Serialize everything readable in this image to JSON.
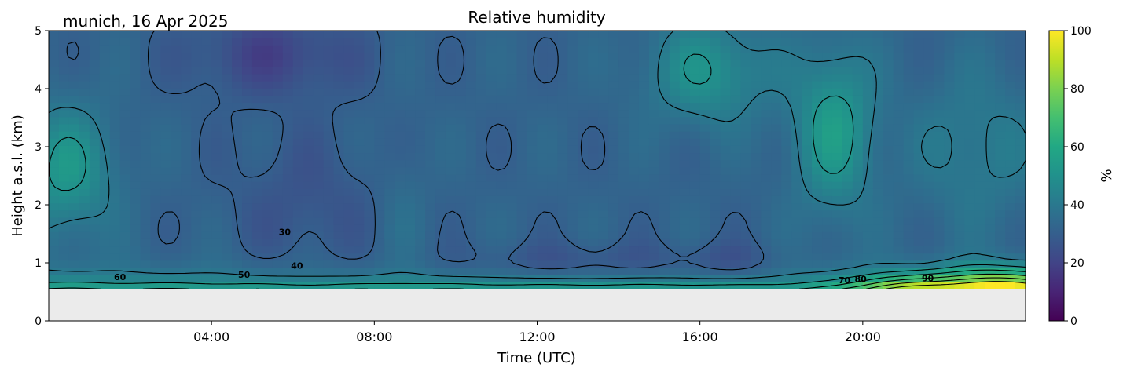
{
  "chart_data": {
    "type": "heatmap",
    "title": "Relative humidity",
    "subtitle": "munich, 16 Apr 2025",
    "xlabel": "Time (UTC)",
    "ylabel": "Height a.s.l. (km)",
    "xlim": [
      0,
      24
    ],
    "ylim": [
      0,
      5
    ],
    "x_ticks": [
      {
        "value": 4,
        "label": "04:00"
      },
      {
        "value": 8,
        "label": "08:00"
      },
      {
        "value": 12,
        "label": "12:00"
      },
      {
        "value": 16,
        "label": "16:00"
      },
      {
        "value": 20,
        "label": "20:00"
      }
    ],
    "y_ticks": [
      {
        "value": 0,
        "label": "0"
      },
      {
        "value": 1,
        "label": "1"
      },
      {
        "value": 2,
        "label": "2"
      },
      {
        "value": 3,
        "label": "3"
      },
      {
        "value": 4,
        "label": "4"
      },
      {
        "value": 5,
        "label": "5"
      }
    ],
    "no_data_below_km": 0.55,
    "colormap": "viridis",
    "colorbar": {
      "label": "%",
      "range": [
        0,
        100
      ],
      "ticks": [
        {
          "value": 0,
          "label": "0"
        },
        {
          "value": 20,
          "label": "20"
        },
        {
          "value": 40,
          "label": "40"
        },
        {
          "value": 60,
          "label": "60"
        },
        {
          "value": 80,
          "label": "80"
        },
        {
          "value": 100,
          "label": "100"
        }
      ]
    },
    "contour_levels": [
      30,
      40,
      50,
      60,
      70,
      80,
      90
    ],
    "contour_labels": [
      {
        "text": "30",
        "x": 5.8,
        "y": 1.48
      },
      {
        "text": "40",
        "x": 6.1,
        "y": 0.9
      },
      {
        "text": "50",
        "x": 4.8,
        "y": 0.74
      },
      {
        "text": "60",
        "x": 1.75,
        "y": 0.7
      },
      {
        "text": "70",
        "x": 19.55,
        "y": 0.65
      },
      {
        "text": "80",
        "x": 19.95,
        "y": 0.67
      },
      {
        "text": "90",
        "x": 21.6,
        "y": 0.68
      }
    ]
  },
  "colors": {
    "nodata": "#ebebeb",
    "viridis": [
      "#440154",
      "#482475",
      "#414487",
      "#355f8d",
      "#2a788e",
      "#21918c",
      "#22a884",
      "#44bf70",
      "#7ad151",
      "#bddf26",
      "#fde725"
    ]
  }
}
